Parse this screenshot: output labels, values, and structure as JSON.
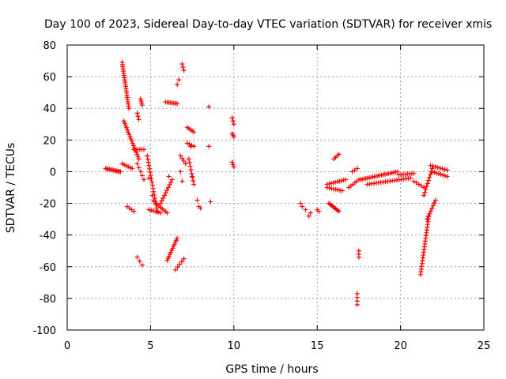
{
  "chart_data": {
    "type": "scatter",
    "title": "Day 100 of 2023, Sidereal Day-to-day VTEC variation (SDTVAR) for receiver xmis",
    "xlabel": "GPS time / hours",
    "ylabel": "SDTVAR / TECUs",
    "xlim": [
      0,
      25
    ],
    "ylim": [
      -100,
      80
    ],
    "xticks": [
      "0",
      "5",
      "10",
      "15",
      "20",
      "25"
    ],
    "yticks": [
      "-100",
      "-80",
      "-60",
      "-40",
      "-20",
      "0",
      "20",
      "40",
      "60",
      "80"
    ],
    "grid": true,
    "marker": "+",
    "color": "#ff0000",
    "tracks": [
      {
        "from": [
          2.3,
          2
        ],
        "to": [
          3.2,
          0
        ],
        "n": 12
      },
      {
        "from": [
          3.3,
          69
        ],
        "to": [
          3.7,
          40
        ],
        "n": 22
      },
      {
        "from": [
          3.4,
          32
        ],
        "to": [
          4.3,
          8
        ],
        "n": 18
      },
      {
        "from": [
          3.3,
          5
        ],
        "to": [
          3.9,
          2
        ],
        "n": 6
      },
      {
        "from": [
          3.6,
          -22
        ],
        "to": [
          4.0,
          -25
        ],
        "n": 4
      },
      {
        "from": [
          4.4,
          46
        ],
        "to": [
          4.5,
          42
        ],
        "n": 4
      },
      {
        "from": [
          4.2,
          37
        ],
        "to": [
          4.3,
          33
        ],
        "n": 3
      },
      {
        "from": [
          4.0,
          14
        ],
        "to": [
          4.6,
          14
        ],
        "n": 6
      },
      {
        "from": [
          4.2,
          5
        ],
        "to": [
          4.6,
          -5
        ],
        "n": 5
      },
      {
        "from": [
          4.8,
          10
        ],
        "to": [
          5.4,
          -25
        ],
        "n": 18
      },
      {
        "from": [
          5.2,
          -19
        ],
        "to": [
          6.0,
          -26
        ],
        "n": 9
      },
      {
        "from": [
          4.9,
          -24
        ],
        "to": [
          5.6,
          -26
        ],
        "n": 6
      },
      {
        "from": [
          5.6,
          -20
        ],
        "to": [
          6.3,
          -5
        ],
        "n": 10
      },
      {
        "from": [
          4.2,
          -54
        ],
        "to": [
          4.5,
          -59
        ],
        "n": 3
      },
      {
        "from": [
          5.9,
          44
        ],
        "to": [
          6.6,
          43
        ],
        "n": 8
      },
      {
        "from": [
          6.0,
          -56
        ],
        "to": [
          6.6,
          -42
        ],
        "n": 12
      },
      {
        "from": [
          6.5,
          -62
        ],
        "to": [
          7.0,
          -55
        ],
        "n": 5
      },
      {
        "from": [
          6.8,
          10
        ],
        "to": [
          7.1,
          5
        ],
        "n": 4
      },
      {
        "from": [
          6.9,
          68
        ],
        "to": [
          7.0,
          64
        ],
        "n": 3
      },
      {
        "from": [
          6.6,
          55
        ],
        "to": [
          6.7,
          58
        ],
        "n": 2
      },
      {
        "from": [
          7.2,
          28
        ],
        "to": [
          7.6,
          25
        ],
        "n": 5
      },
      {
        "from": [
          7.2,
          18
        ],
        "to": [
          7.6,
          16
        ],
        "n": 4
      },
      {
        "from": [
          7.3,
          8
        ],
        "to": [
          7.6,
          -8
        ],
        "n": 8
      },
      {
        "from": [
          7.8,
          -18
        ],
        "to": [
          7.9,
          -22
        ],
        "n": 2
      },
      {
        "from": [
          9.9,
          34
        ],
        "to": [
          10.0,
          30
        ],
        "n": 3
      },
      {
        "from": [
          9.9,
          24
        ],
        "to": [
          10.0,
          22
        ],
        "n": 3
      },
      {
        "from": [
          9.9,
          6
        ],
        "to": [
          10.0,
          3
        ],
        "n": 3
      },
      {
        "from": [
          14.0,
          -20
        ],
        "to": [
          14.1,
          -22
        ],
        "n": 2
      },
      {
        "from": [
          14.5,
          -28
        ],
        "to": [
          14.3,
          -24
        ],
        "n": 2
      },
      {
        "from": [
          15.0,
          -24
        ],
        "to": [
          15.1,
          -25
        ],
        "n": 2
      },
      {
        "from": [
          15.7,
          -20
        ],
        "to": [
          16.3,
          -25
        ],
        "n": 10
      },
      {
        "from": [
          15.6,
          -10
        ],
        "to": [
          16.5,
          -12
        ],
        "n": 8
      },
      {
        "from": [
          15.6,
          -8
        ],
        "to": [
          16.7,
          -5
        ],
        "n": 10
      },
      {
        "from": [
          16.0,
          8
        ],
        "to": [
          16.3,
          11
        ],
        "n": 4
      },
      {
        "from": [
          16.9,
          -10
        ],
        "to": [
          17.5,
          -5
        ],
        "n": 6
      },
      {
        "from": [
          17.1,
          0
        ],
        "to": [
          17.4,
          2
        ],
        "n": 3
      },
      {
        "from": [
          17.4,
          -77
        ],
        "to": [
          17.4,
          -84
        ],
        "n": 4
      },
      {
        "from": [
          17.5,
          -50
        ],
        "to": [
          17.5,
          -54
        ],
        "n": 3
      },
      {
        "from": [
          17.6,
          -5
        ],
        "to": [
          19.8,
          0
        ],
        "n": 22
      },
      {
        "from": [
          18.0,
          -8
        ],
        "to": [
          20.6,
          -4
        ],
        "n": 20
      },
      {
        "from": [
          19.9,
          -2
        ],
        "to": [
          20.8,
          -1
        ],
        "n": 8
      },
      {
        "from": [
          20.8,
          -6
        ],
        "to": [
          21.4,
          -10
        ],
        "n": 5
      },
      {
        "from": [
          21.4,
          -15
        ],
        "to": [
          21.9,
          2
        ],
        "n": 10
      },
      {
        "from": [
          21.2,
          -65
        ],
        "to": [
          21.7,
          -28
        ],
        "n": 22
      },
      {
        "from": [
          21.6,
          -30
        ],
        "to": [
          22.1,
          -18
        ],
        "n": 8
      },
      {
        "from": [
          21.9,
          0
        ],
        "to": [
          22.8,
          -3
        ],
        "n": 8
      },
      {
        "from": [
          21.8,
          4
        ],
        "to": [
          22.8,
          1
        ],
        "n": 8
      }
    ],
    "scattered_points": [
      [
        8.5,
        41
      ],
      [
        8.5,
        16
      ],
      [
        8.6,
        -19
      ],
      [
        8.0,
        -23
      ],
      [
        7.5,
        -3
      ],
      [
        6.9,
        -6
      ],
      [
        7.4,
        16
      ],
      [
        5.1,
        -15
      ],
      [
        5.2,
        -18
      ],
      [
        4.9,
        -4
      ],
      [
        6.1,
        -3
      ],
      [
        14.6,
        -26
      ],
      [
        6.8,
        0
      ],
      [
        3.1,
        0
      ]
    ]
  }
}
